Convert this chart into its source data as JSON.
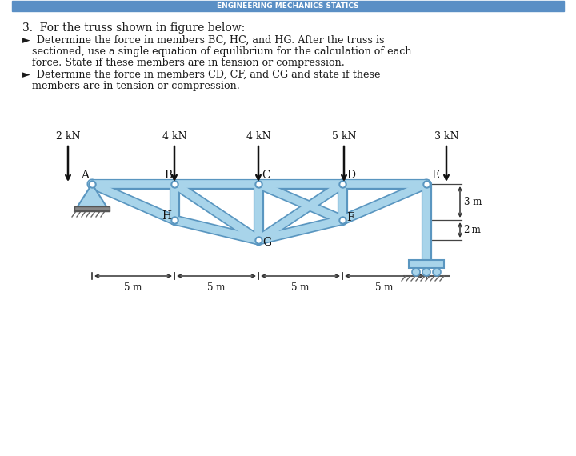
{
  "bg_color": "#ffffff",
  "header_color": "#5a8fc5",
  "truss_fill": "#8dc4e0",
  "truss_edge": "#5a9abf",
  "text_color": "#1a1a1a",
  "header_text": "ENGINEERING MECHANICS STATICS",
  "title": "3.  For the truss shown in figure below:",
  "bullet1a": "►  Determine the force in members BC, HC, and HG. After the truss is",
  "bullet1b": "    sectioned, use a single equation of equilibrium for the calculation of each",
  "bullet1c": "    force. State if these members are in tension or compression.",
  "bullet2a": "►  Determine the force in members CD, CF, and CG and state if these",
  "bullet2b": "    members are in tension or compression.",
  "load_labels": [
    "2 kN",
    "4 kN",
    "4 kN",
    "5 kN",
    "3 kN"
  ],
  "dim_horiz": "5 m",
  "dim_v1": "3 m",
  "dim_v2": "2 m",
  "node_labels": [
    "A",
    "B",
    "C",
    "D",
    "E",
    "H",
    "G",
    "F"
  ],
  "truss_color_light": "#a8d4ea",
  "truss_color_dark": "#5a96c0"
}
